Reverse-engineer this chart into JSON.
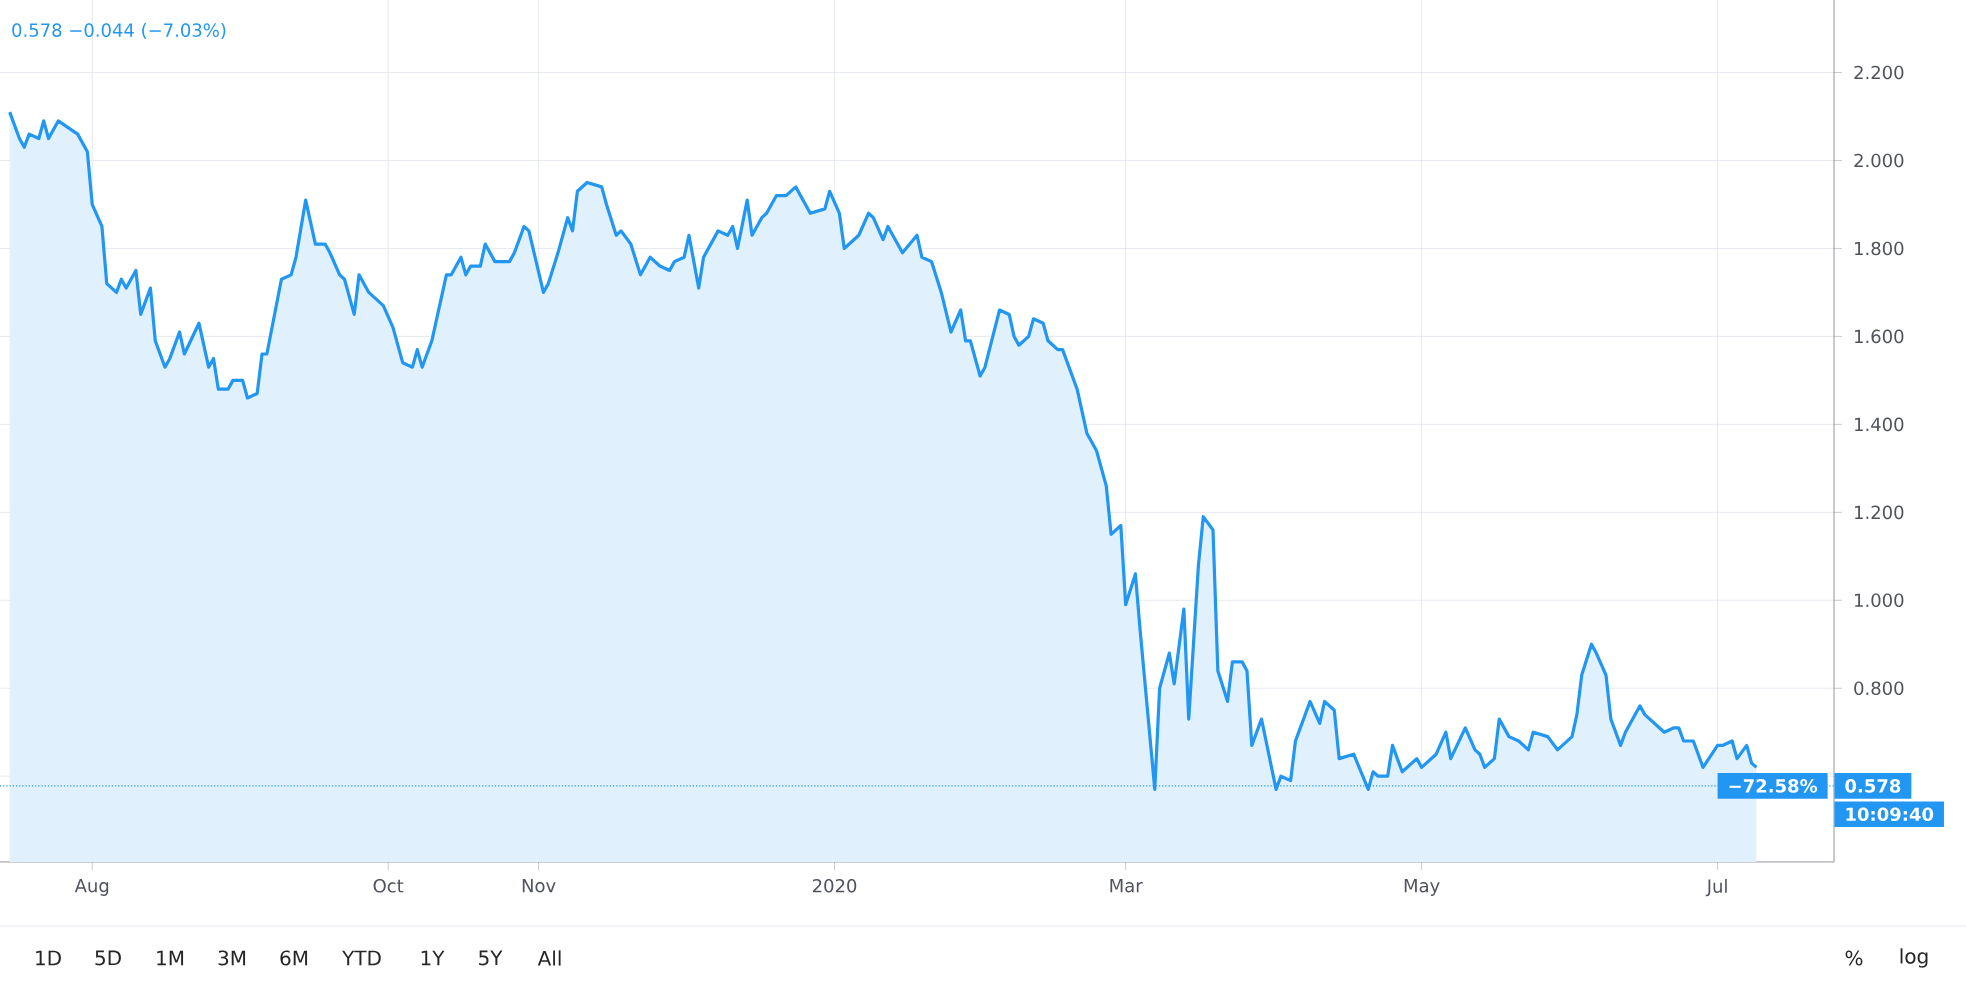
{
  "chart_data": {
    "type": "area",
    "color": "#2196f3",
    "x": [
      "2019-07-15",
      "2019-07-17",
      "2019-07-18",
      "2019-07-19",
      "2019-07-21",
      "2019-07-22",
      "2019-07-23",
      "2019-07-25",
      "2019-07-29",
      "2019-07-31",
      "2019-08-01",
      "2019-08-03",
      "2019-08-04",
      "2019-08-06",
      "2019-08-07",
      "2019-08-08",
      "2019-08-10",
      "2019-08-11",
      "2019-08-13",
      "2019-08-14",
      "2019-08-16",
      "2019-08-17",
      "2019-08-19",
      "2019-08-20",
      "2019-08-23",
      "2019-08-25",
      "2019-08-26",
      "2019-08-27",
      "2019-08-29",
      "2019-08-30",
      "2019-09-01",
      "2019-09-02",
      "2019-09-04",
      "2019-09-05",
      "2019-09-06",
      "2019-09-09",
      "2019-09-11",
      "2019-09-12",
      "2019-09-14",
      "2019-09-16",
      "2019-09-18",
      "2019-09-19",
      "2019-09-21",
      "2019-09-22",
      "2019-09-24",
      "2019-09-25",
      "2019-09-27",
      "2019-09-30",
      "2019-10-02",
      "2019-10-04",
      "2019-10-06",
      "2019-10-07",
      "2019-10-08",
      "2019-10-10",
      "2019-10-13",
      "2019-10-14",
      "2019-10-16",
      "2019-10-17",
      "2019-10-18",
      "2019-10-20",
      "2019-10-21",
      "2019-10-23",
      "2019-10-26",
      "2019-10-27",
      "2019-10-29",
      "2019-10-30",
      "2019-11-02",
      "2019-11-03",
      "2019-11-05",
      "2019-11-07",
      "2019-11-08",
      "2019-11-09",
      "2019-11-11",
      "2019-11-14",
      "2019-11-15",
      "2019-11-17",
      "2019-11-18",
      "2019-11-20",
      "2019-11-22",
      "2019-11-24",
      "2019-11-26",
      "2019-11-28",
      "2019-11-29",
      "2019-12-01",
      "2019-12-02",
      "2019-12-04",
      "2019-12-05",
      "2019-12-08",
      "2019-12-10",
      "2019-12-11",
      "2019-12-12",
      "2019-12-14",
      "2019-12-15",
      "2019-12-17",
      "2019-12-18",
      "2019-12-20",
      "2019-12-22",
      "2019-12-24",
      "2019-12-27",
      "2019-12-30",
      "2019-12-31",
      "2020-01-02",
      "2020-01-03",
      "2020-01-06",
      "2020-01-08",
      "2020-01-09",
      "2020-01-11",
      "2020-01-12",
      "2020-01-15",
      "2020-01-18",
      "2020-01-19",
      "2020-01-21",
      "2020-01-23",
      "2020-01-25",
      "2020-01-27",
      "2020-01-28",
      "2020-01-29",
      "2020-01-31",
      "2020-02-01",
      "2020-02-04",
      "2020-02-06",
      "2020-02-07",
      "2020-02-08",
      "2020-02-10",
      "2020-02-11",
      "2020-02-13",
      "2020-02-14",
      "2020-02-16",
      "2020-02-17",
      "2020-02-20",
      "2020-02-22",
      "2020-02-24",
      "2020-02-26",
      "2020-02-27",
      "2020-02-29",
      "2020-03-01",
      "2020-03-03",
      "2020-03-04",
      "2020-03-07",
      "2020-03-08",
      "2020-03-10",
      "2020-03-11",
      "2020-03-13",
      "2020-03-14",
      "2020-03-16",
      "2020-03-17",
      "2020-03-19",
      "2020-03-20",
      "2020-03-22",
      "2020-03-23",
      "2020-03-25",
      "2020-03-26",
      "2020-03-27",
      "2020-03-29",
      "2020-04-01",
      "2020-04-02",
      "2020-04-04",
      "2020-04-05",
      "2020-04-06",
      "2020-04-08",
      "2020-04-10",
      "2020-04-11",
      "2020-04-13",
      "2020-04-14",
      "2020-04-17",
      "2020-04-20",
      "2020-04-21",
      "2020-04-22",
      "2020-04-24",
      "2020-04-25",
      "2020-04-27",
      "2020-04-30",
      "2020-05-01",
      "2020-05-04",
      "2020-05-06",
      "2020-05-07",
      "2020-05-10",
      "2020-05-12",
      "2020-05-13",
      "2020-05-14",
      "2020-05-16",
      "2020-05-17",
      "2020-05-19",
      "2020-05-21",
      "2020-05-23",
      "2020-05-24",
      "2020-05-27",
      "2020-05-29",
      "2020-05-30",
      "2020-06-01",
      "2020-06-02",
      "2020-06-03",
      "2020-06-05",
      "2020-06-06",
      "2020-06-08",
      "2020-06-09",
      "2020-06-11",
      "2020-06-12",
      "2020-06-13",
      "2020-06-15",
      "2020-06-16",
      "2020-06-19",
      "2020-06-20",
      "2020-06-22",
      "2020-06-23",
      "2020-06-24",
      "2020-06-26",
      "2020-06-28",
      "2020-07-01",
      "2020-07-02",
      "2020-07-04",
      "2020-07-05",
      "2020-07-07",
      "2020-07-08",
      "2020-07-09"
    ],
    "values": [
      2.11,
      2.05,
      2.03,
      2.06,
      2.05,
      2.09,
      2.05,
      2.09,
      2.06,
      2.02,
      1.9,
      1.85,
      1.72,
      1.7,
      1.73,
      1.71,
      1.75,
      1.65,
      1.71,
      1.59,
      1.53,
      1.55,
      1.61,
      1.56,
      1.63,
      1.53,
      1.55,
      1.48,
      1.48,
      1.5,
      1.5,
      1.46,
      1.47,
      1.56,
      1.56,
      1.73,
      1.74,
      1.78,
      1.91,
      1.81,
      1.81,
      1.79,
      1.74,
      1.73,
      1.65,
      1.74,
      1.7,
      1.67,
      1.62,
      1.54,
      1.53,
      1.57,
      1.53,
      1.59,
      1.74,
      1.74,
      1.78,
      1.74,
      1.76,
      1.76,
      1.81,
      1.77,
      1.77,
      1.79,
      1.85,
      1.84,
      1.7,
      1.72,
      1.79,
      1.87,
      1.84,
      1.93,
      1.95,
      1.94,
      1.9,
      1.83,
      1.84,
      1.81,
      1.74,
      1.78,
      1.76,
      1.75,
      1.77,
      1.78,
      1.83,
      1.71,
      1.78,
      1.84,
      1.83,
      1.85,
      1.8,
      1.91,
      1.83,
      1.87,
      1.88,
      1.92,
      1.92,
      1.94,
      1.88,
      1.89,
      1.93,
      1.88,
      1.8,
      1.83,
      1.88,
      1.87,
      1.82,
      1.85,
      1.79,
      1.83,
      1.78,
      1.77,
      1.7,
      1.61,
      1.66,
      1.59,
      1.59,
      1.51,
      1.53,
      1.66,
      1.65,
      1.6,
      1.58,
      1.6,
      1.64,
      1.63,
      1.59,
      1.57,
      1.57,
      1.48,
      1.38,
      1.34,
      1.26,
      1.15,
      1.17,
      0.99,
      1.06,
      0.93,
      0.57,
      0.8,
      0.88,
      0.81,
      0.98,
      0.73,
      1.08,
      1.19,
      1.16,
      0.84,
      0.77,
      0.86,
      0.86,
      0.84,
      0.67,
      0.73,
      0.57,
      0.6,
      0.59,
      0.68,
      0.71,
      0.77,
      0.72,
      0.77,
      0.75,
      0.64,
      0.65,
      0.57,
      0.61,
      0.6,
      0.6,
      0.67,
      0.61,
      0.64,
      0.62,
      0.65,
      0.7,
      0.64,
      0.71,
      0.66,
      0.65,
      0.62,
      0.64,
      0.73,
      0.69,
      0.68,
      0.66,
      0.7,
      0.69,
      0.66,
      0.67,
      0.69,
      0.74,
      0.83,
      0.9,
      0.88,
      0.83,
      0.73,
      0.67,
      0.7,
      0.72,
      0.76,
      0.74,
      0.71,
      0.7,
      0.71,
      0.71,
      0.68,
      0.68,
      0.62,
      0.67,
      0.67,
      0.68,
      0.64,
      0.67,
      0.63,
      0.62
    ],
    "xlim": [
      "2019-07-13",
      "2020-07-25"
    ],
    "xticks": [
      {
        "value": "2019-08-01",
        "label": "Aug"
      },
      {
        "value": "2019-10-01",
        "label": "Oct"
      },
      {
        "value": "2019-11-01",
        "label": "Nov"
      },
      {
        "value": "2020-01-01",
        "label": "2020"
      },
      {
        "value": "2020-03-01",
        "label": "Mar"
      },
      {
        "value": "2020-05-01",
        "label": "May"
      },
      {
        "value": "2020-07-01",
        "label": "Jul"
      }
    ],
    "ylim": [
      0.405,
      2.365
    ],
    "yticks": [
      {
        "value": 0.6,
        "label": null
      },
      {
        "value": 0.8,
        "label": "0.800"
      },
      {
        "value": 1.0,
        "label": "1.000"
      },
      {
        "value": 1.2,
        "label": "1.200"
      },
      {
        "value": 1.4,
        "label": "1.400"
      },
      {
        "value": 1.6,
        "label": "1.600"
      },
      {
        "value": 1.8,
        "label": "1.800"
      },
      {
        "value": 2.0,
        "label": "2.000"
      },
      {
        "value": 2.2,
        "label": "2.200"
      }
    ],
    "grid": true,
    "ref_lines": [
      {
        "axis": "y",
        "value": 0.578,
        "label": "0.578",
        "color": "#2196f3",
        "line_style": "dotted"
      }
    ],
    "annotations": [
      "0.578 −0.044 (−7.03%)",
      "−72.58%",
      "10:09:40",
      "1D",
      "5D",
      "1M",
      "3M",
      "6M",
      "YTD",
      "1Y",
      "5Y",
      "All",
      "%",
      "log"
    ]
  }
}
